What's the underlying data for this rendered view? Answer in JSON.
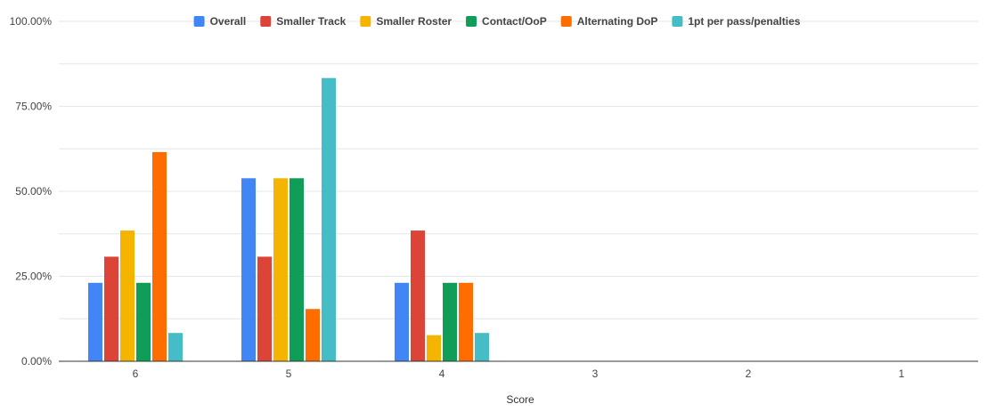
{
  "chart_data": {
    "type": "bar",
    "title": "",
    "xlabel": "Score",
    "ylabel": "",
    "categories": [
      "6",
      "5",
      "4",
      "3",
      "2",
      "1"
    ],
    "y_ticks": [
      "0.00%",
      "25.00%",
      "50.00%",
      "75.00%",
      "100.00%"
    ],
    "ylim": [
      0,
      100
    ],
    "grid": true,
    "legend_position": "top-center",
    "series": [
      {
        "name": "Overall",
        "color": "#4285f4",
        "values": [
          23.08,
          53.85,
          23.08,
          0,
          0,
          0
        ]
      },
      {
        "name": "Smaller Track",
        "color": "#db4437",
        "values": [
          30.77,
          30.77,
          38.46,
          0,
          0,
          0
        ]
      },
      {
        "name": "Smaller Roster",
        "color": "#f4b400",
        "values": [
          38.46,
          53.85,
          7.69,
          0,
          0,
          0
        ]
      },
      {
        "name": "Contact/OoP",
        "color": "#0f9d58",
        "values": [
          23.08,
          53.85,
          23.08,
          0,
          0,
          0
        ]
      },
      {
        "name": "Alternating DoP",
        "color": "#ff6d01",
        "values": [
          61.54,
          15.38,
          23.08,
          0,
          0,
          0
        ]
      },
      {
        "name": "1pt per pass/penalties",
        "color": "#46bdc6",
        "values": [
          8.33,
          83.33,
          8.33,
          0,
          0,
          0
        ]
      }
    ]
  }
}
